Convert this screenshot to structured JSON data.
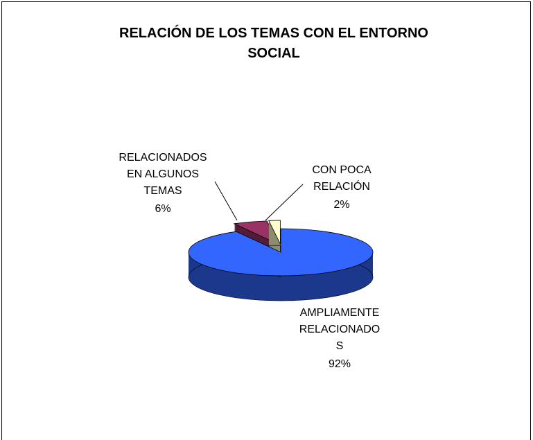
{
  "chart_data": {
    "type": "pie",
    "title": "RELACIÓN DE LOS TEMAS CON EL ENTORNO\nSOCIAL",
    "categories": [
      "AMPLIAMENTE\nRELACIONADO\nS",
      "RELACIONADOS\nEN ALGUNOS\nTEMAS",
      "CON POCA\nRELACIÓN"
    ],
    "values": [
      92,
      6,
      2
    ],
    "value_labels": [
      "92%",
      "6%",
      "2%"
    ],
    "colors": [
      "#3366ff",
      "#993366",
      "#ffffcc"
    ]
  }
}
